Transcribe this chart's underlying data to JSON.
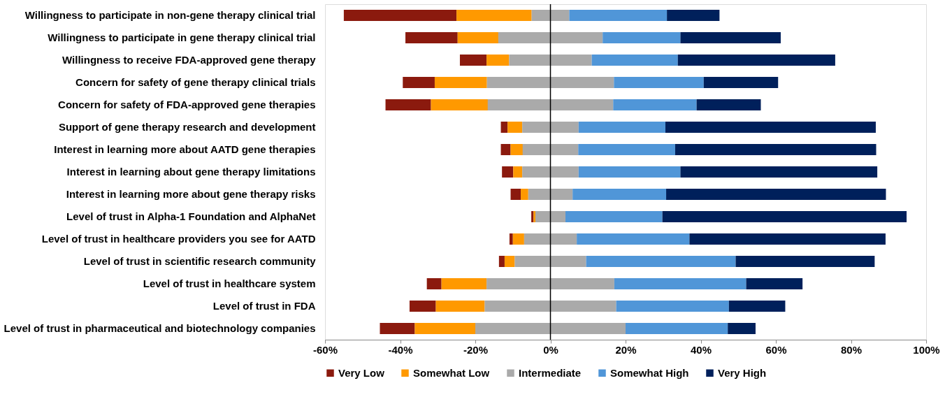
{
  "chart_data": {
    "type": "bar",
    "orientation": "horizontal",
    "categories": [
      "Willingness to participate in non-gene therapy clinical trial",
      "Willingness to participate in gene therapy clinical trial",
      "Willingness to receive FDA-approved gene therapy",
      "Concern for safety of gene therapy clinical trials",
      "Concern for safety of FDA-approved gene therapies",
      "Support of gene therapy research and development",
      "Interest in learning more about AATD gene therapies",
      "Interest in learning about gene therapy limitations",
      "Interest in learning more about gene therapy risks",
      "Level of trust in Alpha-1 Foundation and AlphaNet",
      "Level of trust in healthcare providers you see for AATD",
      "Level of trust in scientific research community",
      "Level of trust in healthcare system",
      "Level of trust in FDA",
      "Level of trust in pharmaceutical and biotechnology companies"
    ],
    "series": [
      {
        "name": "Very Low",
        "color": "#8b1a0e",
        "base": [
          -55,
          -38.6,
          -24.1,
          -39.3,
          -43.9,
          -13.2,
          -13.2,
          -12.9,
          -10.6,
          -5.1,
          -10.9,
          -13.7,
          -32.9,
          -37.5,
          -45.4
        ],
        "values": [
          30,
          13.9,
          7.1,
          8.5,
          12.1,
          1.8,
          2.6,
          3,
          2.7,
          0.6,
          0.9,
          1.5,
          3.9,
          7,
          9.3
        ]
      },
      {
        "name": "Somewhat Low",
        "color": "#ff9900",
        "base": [
          -25,
          -24.7,
          -17,
          -30.8,
          -31.8,
          -11.4,
          -10.6,
          -9.9,
          -7.9,
          -4.5,
          -10,
          -12.2,
          -29,
          -30.5,
          -36.1
        ],
        "values": [
          20,
          10.9,
          6,
          13.9,
          15.2,
          3.9,
          3.3,
          2.4,
          2,
          0.5,
          3,
          2.7,
          12,
          13,
          16.1
        ]
      },
      {
        "name": "Intermediate",
        "color": "#aaaaaa",
        "base": [
          -5,
          -13.9,
          -11,
          -16.9,
          -16.7,
          -7.5,
          -7.4,
          -7.5,
          -5.9,
          -4,
          -7,
          -9.5,
          -17,
          -17.5,
          -20
        ],
        "values": [
          10,
          27.8,
          22,
          33.8,
          33.4,
          15,
          14.8,
          15,
          11.8,
          8,
          14,
          19,
          34,
          35,
          40
        ]
      },
      {
        "name": "Somewhat High",
        "color": "#5096d8",
        "base": [
          5,
          13.9,
          11,
          16.9,
          16.7,
          7.5,
          7.4,
          7.5,
          5.9,
          4,
          7,
          9.5,
          17,
          17.5,
          20
        ],
        "values": [
          26,
          20.7,
          22.9,
          23.9,
          22.2,
          23.1,
          25.8,
          27.1,
          24.9,
          25.8,
          30,
          39.8,
          35.1,
          30,
          27.2
        ]
      },
      {
        "name": "Very High",
        "color": "#00205b",
        "base": [
          31,
          34.6,
          33.9,
          40.8,
          38.9,
          30.6,
          33.2,
          34.6,
          30.8,
          29.8,
          37,
          49.3,
          52.1,
          47.5,
          47.2
        ],
        "values": [
          14,
          26.7,
          41.9,
          19.8,
          17.1,
          56,
          53.5,
          52.4,
          58.5,
          65,
          52.2,
          37,
          15,
          15,
          7.4
        ]
      }
    ],
    "xlim": [
      -60,
      100
    ],
    "xticks": [
      {
        "value": -60,
        "label": "-60%"
      },
      {
        "value": -40,
        "label": "-40%"
      },
      {
        "value": -20,
        "label": "-20%"
      },
      {
        "value": 0,
        "label": "0%"
      },
      {
        "value": 20,
        "label": "20%"
      },
      {
        "value": 40,
        "label": "40%"
      },
      {
        "value": 60,
        "label": "60%"
      },
      {
        "value": 80,
        "label": "80%"
      },
      {
        "value": 100,
        "label": "100%"
      }
    ],
    "ref_lines": [
      {
        "axis": "x",
        "value": 0,
        "color": "#000000"
      }
    ],
    "grid": false,
    "legend": "bottom"
  }
}
